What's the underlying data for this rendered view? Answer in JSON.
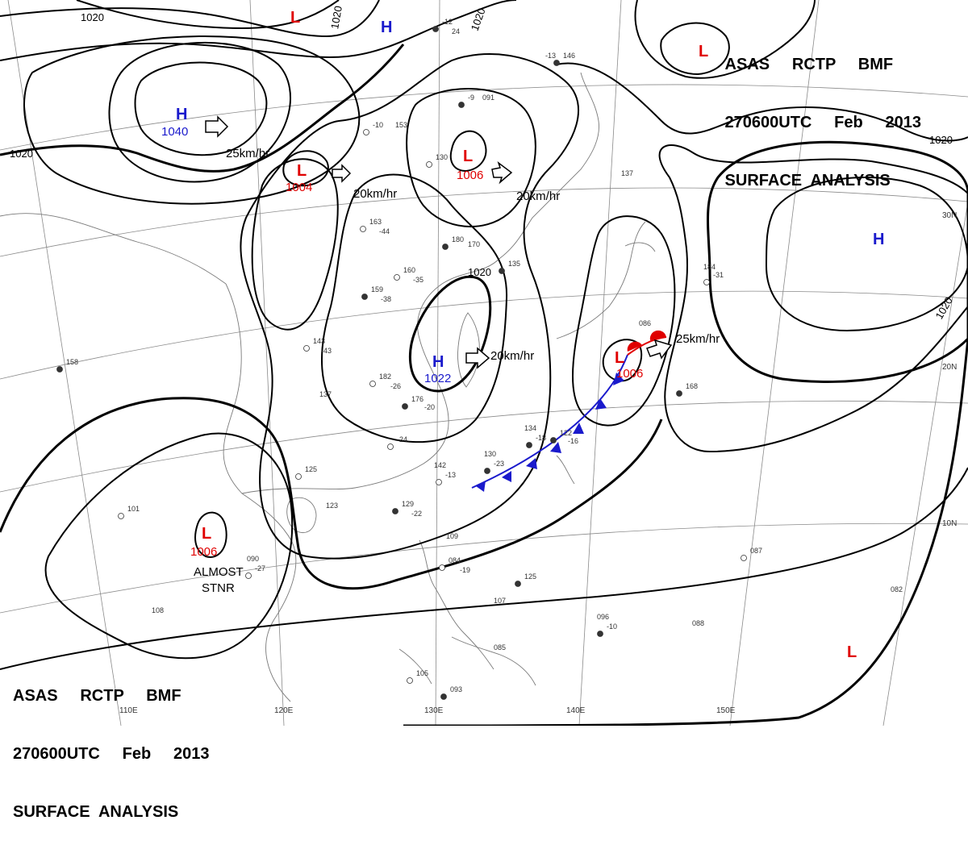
{
  "header": {
    "line1": "ASAS     RCTP     BMF",
    "line2": "270600UTC     Feb     2013",
    "line3": "SURFACE  ANALYSIS"
  },
  "colors": {
    "high": "#1a1acc",
    "low": "#e00000",
    "front": "#1a1acc",
    "warm": "#e00000"
  },
  "systems": [
    {
      "id": "high-mongolia",
      "type": "H",
      "value": "1040"
    },
    {
      "id": "high-north",
      "type": "H",
      "value": ""
    },
    {
      "id": "high-taiwan",
      "type": "H",
      "value": "1022"
    },
    {
      "id": "high-pacific",
      "type": "H",
      "value": ""
    },
    {
      "id": "low-northwest",
      "type": "L",
      "value": ""
    },
    {
      "id": "low-center-west",
      "type": "L",
      "value": "1004"
    },
    {
      "id": "low-north-china",
      "type": "L",
      "value": "1006"
    },
    {
      "id": "low-japan",
      "type": "L",
      "value": "1006"
    },
    {
      "id": "low-indochina",
      "type": "L",
      "value": "1006"
    },
    {
      "id": "low-northeast",
      "type": "L",
      "value": ""
    },
    {
      "id": "low-southeast",
      "type": "L",
      "value": ""
    }
  ],
  "motions": [
    "25km/hr",
    "20km/hr",
    "20km/hr",
    "20km/hr",
    "25km/hr"
  ],
  "isobar_labels": [
    "1020",
    "1020",
    "1020",
    "1020",
    "1020",
    "1020",
    "1020"
  ],
  "note": {
    "line1": "ALMOST",
    "line2": "STNR"
  },
  "longitudes": [
    "110E",
    "120E",
    "130E",
    "140E",
    "150E"
  ],
  "latitudes": [
    "30N",
    "20N",
    "10N"
  ],
  "stations": [
    "-12",
    "24",
    "-10",
    "153",
    "-9",
    "091",
    "130",
    "-13",
    "146",
    "137",
    "163",
    "-44",
    "180",
    "170",
    "160",
    "-35",
    "159",
    "-38",
    "182",
    "-26",
    "176",
    "-20",
    "143",
    "-43",
    "135",
    "137",
    "125",
    "123",
    "129",
    "-22",
    "-24",
    "134",
    "-18",
    "142",
    "-13",
    "130",
    "-23",
    "109",
    "084",
    "-19",
    "125",
    "107",
    "105",
    "085",
    "093",
    "090",
    "-27",
    "096",
    "-10",
    "088",
    "087",
    "082",
    "168",
    "184",
    "-31",
    "086",
    "122",
    "-16",
    "101",
    "108",
    "158"
  ]
}
